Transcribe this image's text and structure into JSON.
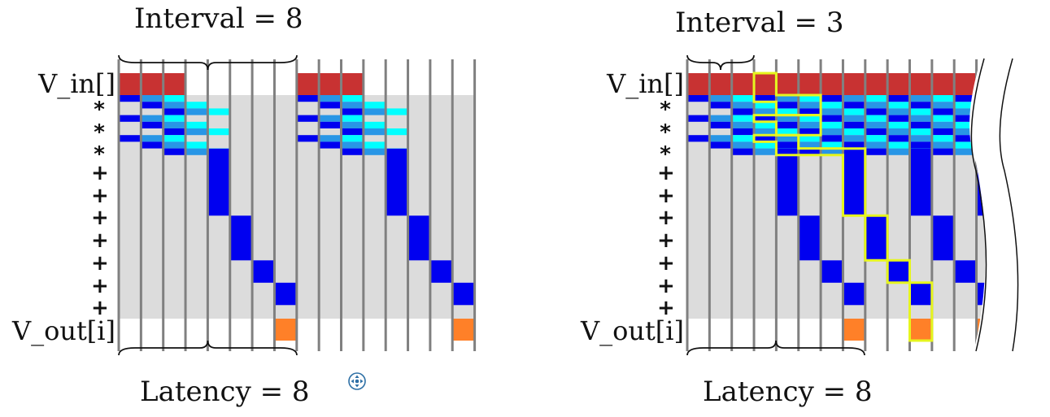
{
  "left_diagram": {
    "top_label": "Interval = 8",
    "bottom_label": "Latency = 8",
    "input_row_label": "V_in[]",
    "output_row_label": "V_out[i]",
    "op_labels": [
      "*",
      "*",
      "*",
      "+",
      "+",
      "+",
      "+",
      "+",
      "+",
      "+"
    ]
  },
  "right_diagram": {
    "top_label": "Interval = 3",
    "bottom_label": "Latency = 8",
    "input_row_label": "V_in[]",
    "output_row_label": "V_out[i]",
    "op_labels": [
      "*",
      "*",
      "*",
      "+",
      "+",
      "+",
      "+",
      "+",
      "+",
      "+"
    ]
  },
  "colors": {
    "input": "#c83232",
    "mult_stage_dark": "#0000f0",
    "mult_stage_mid": "#2896e6",
    "mult_stage_light": "#00ffff",
    "add_stage": "#0000f0",
    "output": "#ff8028",
    "background_band": "#dcdcdc",
    "clock_line": "#808080",
    "highlight": "#e6f51e"
  },
  "widgets": {
    "pan_control_icon": "pan-move-icon"
  }
}
